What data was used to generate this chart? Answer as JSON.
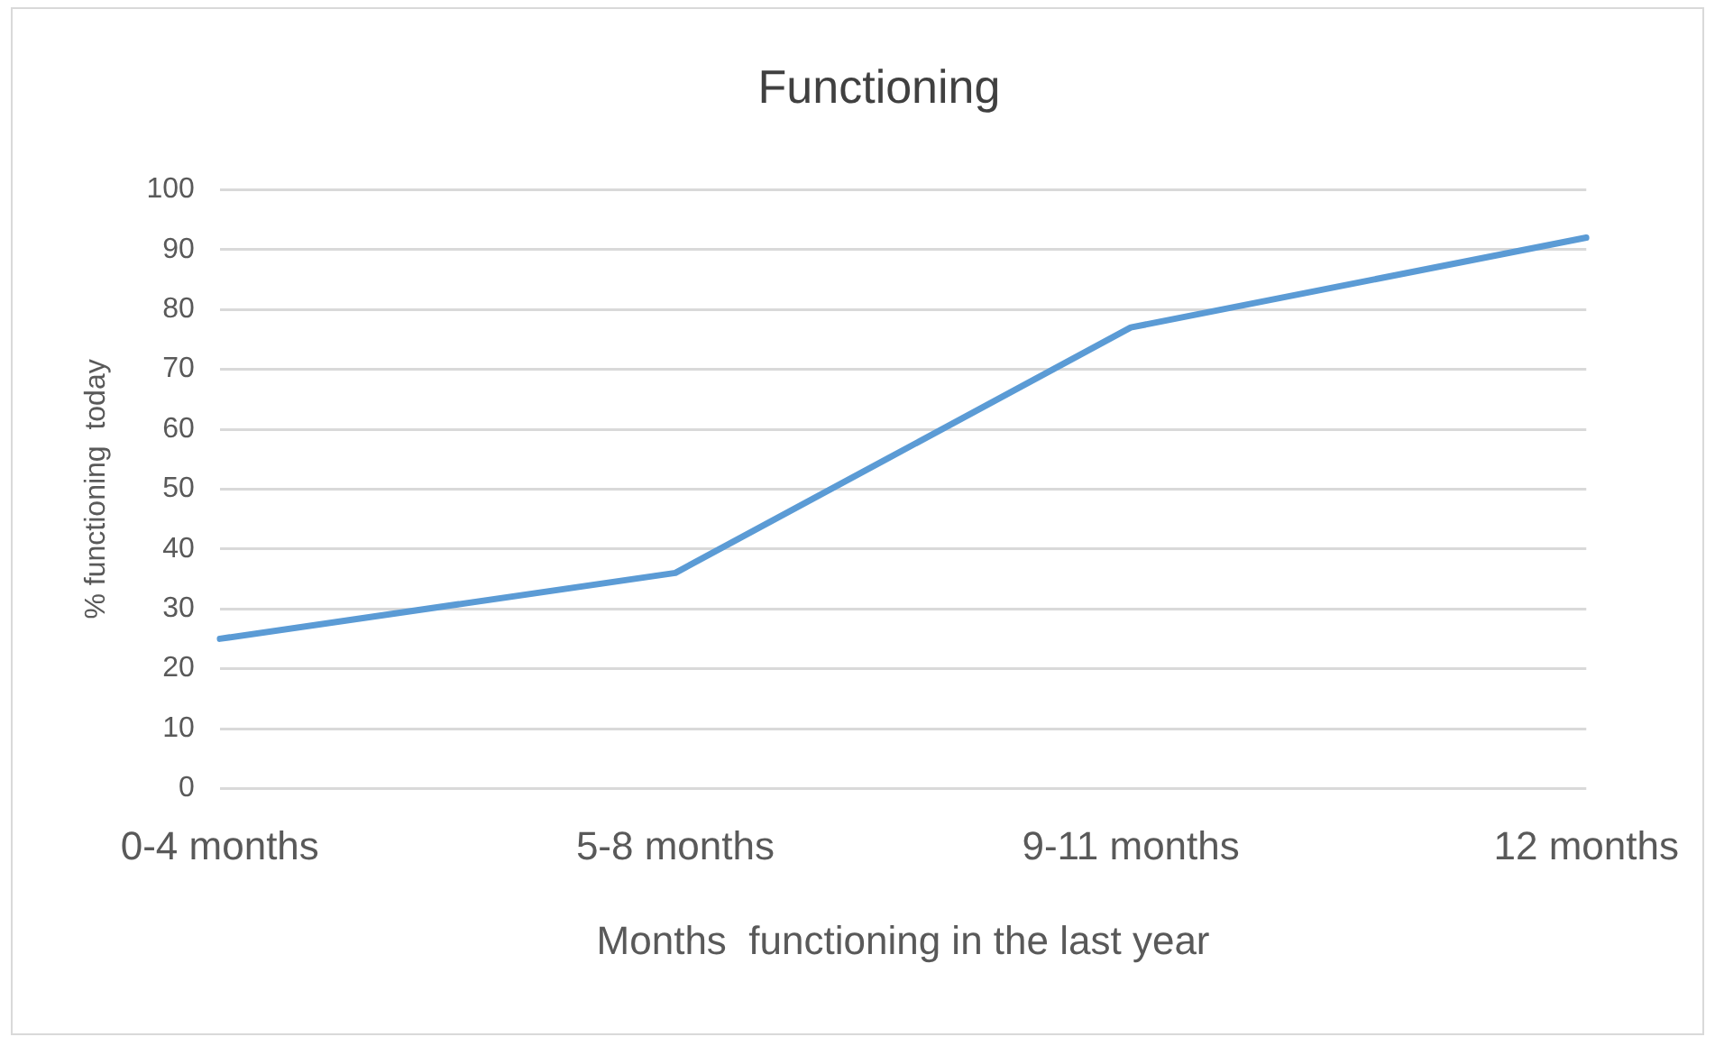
{
  "chart_data": {
    "type": "line",
    "title": "Functioning",
    "xlabel": "Months  functioning in the last year",
    "ylabel": "% functioning  today",
    "categories": [
      "0-4 months",
      "5-8 months",
      "9-11 months",
      "12 months"
    ],
    "series": [
      {
        "color": "#5b9bd5",
        "values": [
          25,
          36,
          77,
          92
        ]
      }
    ],
    "ylim": [
      0,
      100
    ],
    "yticks": [
      0,
      10,
      20,
      30,
      40,
      50,
      60,
      70,
      80,
      90,
      100
    ],
    "grid": "y",
    "legend": false,
    "marker": "none"
  }
}
